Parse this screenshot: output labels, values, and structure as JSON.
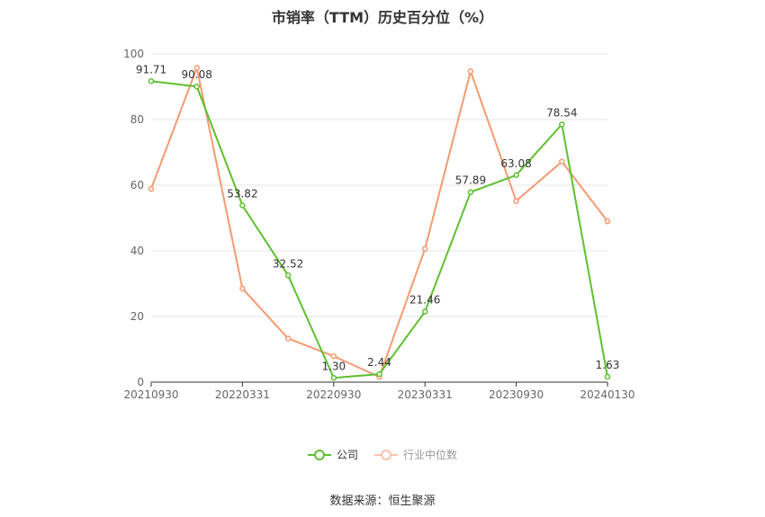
{
  "chart_data": {
    "type": "line",
    "title": "市销率（TTM）历史百分位（%）",
    "x_ticks": [
      "20210930",
      "20220331",
      "20220930",
      "20230331",
      "20230930",
      "20240130"
    ],
    "ylim": [
      0,
      100
    ],
    "y_ticks": [
      0,
      20,
      40,
      60,
      80,
      100
    ],
    "grid": true,
    "legend_placement": "bottom",
    "series": [
      {
        "name": "公司",
        "color": "#5ec02f",
        "values": [
          91.71,
          90.08,
          53.82,
          32.52,
          1.3,
          2.44,
          21.46,
          57.89,
          63.08,
          78.54,
          1.63
        ],
        "labels": [
          "91.71",
          "90.08",
          "53.82",
          "32.52",
          "1.30",
          "2.44",
          "21.46",
          "57.89",
          "63.08",
          "78.54",
          "1.63"
        ]
      },
      {
        "name": "行业中位数",
        "color": "#f59a71",
        "values": [
          58.9,
          95.8,
          28.5,
          13.3,
          7.9,
          1.6,
          40.6,
          94.7,
          55.2,
          67.2,
          49.0
        ]
      }
    ]
  },
  "source": "数据来源：恒生聚源"
}
